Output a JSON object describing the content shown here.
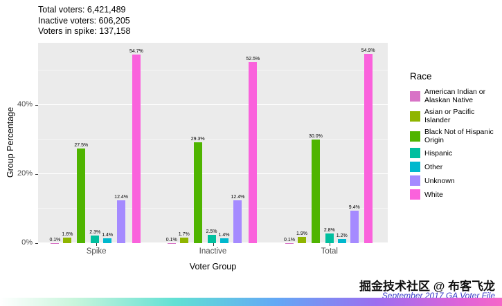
{
  "annotations": [
    "Total voters: 6,421,489",
    "Inactive voters: 606,205",
    "Voters in spike: 137,158"
  ],
  "chart_data": {
    "type": "bar",
    "title": "",
    "xlabel": "Voter Group",
    "ylabel": "Group Percentage",
    "legend_title": "Race",
    "legend_position": "right",
    "grid": true,
    "panel_background": "#EBEBEB",
    "categories": [
      "Spike",
      "Inactive",
      "Total"
    ],
    "series": [
      {
        "name": "American Indian or Alaskan Native",
        "color": "#D873C6",
        "values": [
          0.1,
          0.1,
          0.1
        ]
      },
      {
        "name": "Asian or Pacific Islander",
        "color": "#8FB500",
        "values": [
          1.6,
          1.7,
          1.9
        ]
      },
      {
        "name": "Black Not of Hispanic Origin",
        "color": "#4FB400",
        "values": [
          27.5,
          29.3,
          30.0
        ]
      },
      {
        "name": "Hispanic",
        "color": "#00BF9F",
        "values": [
          2.3,
          2.5,
          2.8
        ]
      },
      {
        "name": "Other",
        "color": "#00B8CE",
        "values": [
          1.4,
          1.4,
          1.2
        ]
      },
      {
        "name": "Unknown",
        "color": "#A58AFF",
        "values": [
          12.4,
          12.4,
          9.4
        ]
      },
      {
        "name": "White",
        "color": "#FA62DC",
        "values": [
          54.7,
          52.5,
          54.9
        ]
      }
    ],
    "ylim": [
      0,
      58
    ],
    "yticks": [
      {
        "label": "0%",
        "value": 0
      },
      {
        "label": "20%",
        "value": 20
      },
      {
        "label": "40%",
        "value": 40
      }
    ],
    "minor_gridlines": [
      10,
      30,
      50
    ],
    "bar_label_format": "one_decimal_percent"
  },
  "caption": {
    "text": "September 2017 GA Voter File",
    "color": "#3A3EC8"
  },
  "watermark": {
    "text": "掘金技术社区 @ 布客飞龙"
  }
}
